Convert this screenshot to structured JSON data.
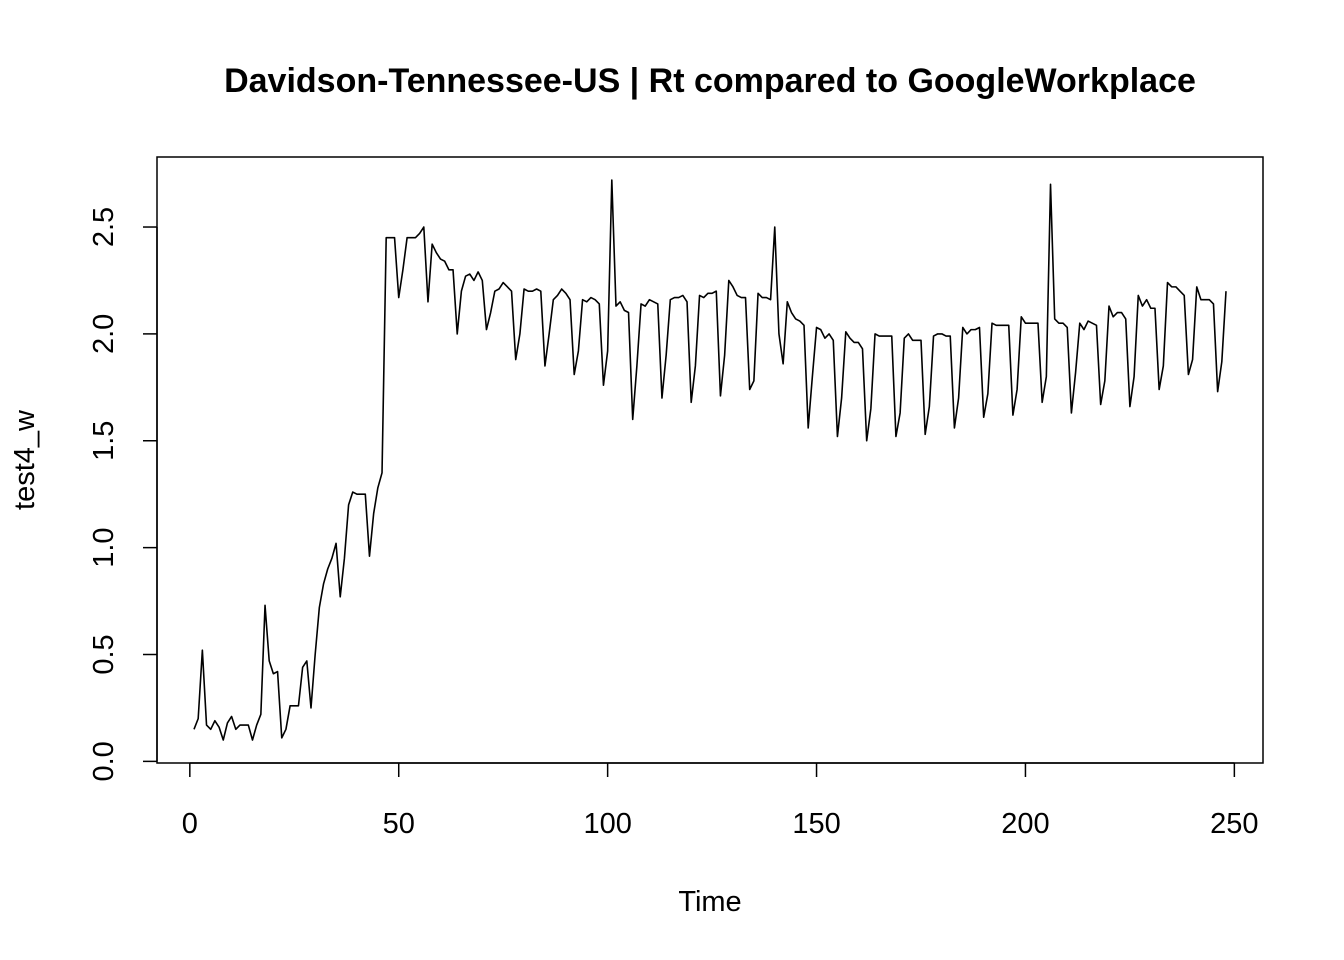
{
  "chart_data": {
    "type": "line",
    "title": "Davidson-Tennessee-US | Rt compared to GoogleWorkplace",
    "xlabel": "Time",
    "ylabel": "test4_w",
    "xlim": [
      1,
      248
    ],
    "ylim": [
      0.1,
      2.72
    ],
    "xticks": [
      0,
      50,
      100,
      150,
      200,
      250
    ],
    "xtick_labels": [
      "0",
      "50",
      "100",
      "150",
      "200",
      "250"
    ],
    "yticks": [
      0.0,
      0.5,
      1.0,
      1.5,
      2.0,
      2.5
    ],
    "ytick_labels": [
      "0.0",
      "0.5",
      "1.0",
      "1.5",
      "2.0",
      "2.5"
    ],
    "grid": false,
    "legend": "none",
    "line_color": "#000000",
    "x": [
      1,
      2,
      3,
      4,
      5,
      6,
      7,
      8,
      9,
      10,
      11,
      12,
      13,
      14,
      15,
      16,
      17,
      18,
      19,
      20,
      21,
      22,
      23,
      24,
      25,
      26,
      27,
      28,
      29,
      30,
      31,
      32,
      33,
      34,
      35,
      36,
      37,
      38,
      39,
      40,
      41,
      42,
      43,
      44,
      45,
      46,
      47,
      48,
      49,
      50,
      51,
      52,
      53,
      54,
      55,
      56,
      57,
      58,
      59,
      60,
      61,
      62,
      63,
      64,
      65,
      66,
      67,
      68,
      69,
      70,
      71,
      72,
      73,
      74,
      75,
      76,
      77,
      78,
      79,
      80,
      81,
      82,
      83,
      84,
      85,
      86,
      87,
      88,
      89,
      90,
      91,
      92,
      93,
      94,
      95,
      96,
      97,
      98,
      99,
      100,
      101,
      102,
      103,
      104,
      105,
      106,
      107,
      108,
      109,
      110,
      111,
      112,
      113,
      114,
      115,
      116,
      117,
      118,
      119,
      120,
      121,
      122,
      123,
      124,
      125,
      126,
      127,
      128,
      129,
      130,
      131,
      132,
      133,
      134,
      135,
      136,
      137,
      138,
      139,
      140,
      141,
      142,
      143,
      144,
      145,
      146,
      147,
      148,
      149,
      150,
      151,
      152,
      153,
      154,
      155,
      156,
      157,
      158,
      159,
      160,
      161,
      162,
      163,
      164,
      165,
      166,
      167,
      168,
      169,
      170,
      171,
      172,
      173,
      174,
      175,
      176,
      177,
      178,
      179,
      180,
      181,
      182,
      183,
      184,
      185,
      186,
      187,
      188,
      189,
      190,
      191,
      192,
      193,
      194,
      195,
      196,
      197,
      198,
      199,
      200,
      201,
      202,
      203,
      204,
      205,
      206,
      207,
      208,
      209,
      210,
      211,
      212,
      213,
      214,
      215,
      216,
      217,
      218,
      219,
      220,
      221,
      222,
      223,
      224,
      225,
      226,
      227,
      228,
      229,
      230,
      231,
      232,
      233,
      234,
      235,
      236,
      237,
      238,
      239,
      240,
      241,
      242,
      243,
      244,
      245,
      246,
      247,
      248
    ],
    "values": [
      0.15,
      0.2,
      0.52,
      0.17,
      0.15,
      0.19,
      0.16,
      0.1,
      0.18,
      0.21,
      0.15,
      0.17,
      0.17,
      0.17,
      0.1,
      0.17,
      0.22,
      0.73,
      0.47,
      0.41,
      0.42,
      0.11,
      0.15,
      0.26,
      0.26,
      0.26,
      0.44,
      0.47,
      0.25,
      0.5,
      0.72,
      0.83,
      0.9,
      0.95,
      1.02,
      0.77,
      0.95,
      1.2,
      1.26,
      1.25,
      1.25,
      1.25,
      0.96,
      1.16,
      1.28,
      1.35,
      2.45,
      2.45,
      2.45,
      2.17,
      2.3,
      2.45,
      2.45,
      2.45,
      2.47,
      2.5,
      2.15,
      2.42,
      2.38,
      2.35,
      2.34,
      2.3,
      2.3,
      2.0,
      2.2,
      2.27,
      2.28,
      2.25,
      2.29,
      2.25,
      2.02,
      2.1,
      2.2,
      2.21,
      2.24,
      2.22,
      2.2,
      1.88,
      2.0,
      2.21,
      2.2,
      2.2,
      2.21,
      2.2,
      1.85,
      2.0,
      2.16,
      2.18,
      2.21,
      2.19,
      2.16,
      1.81,
      1.92,
      2.16,
      2.15,
      2.17,
      2.16,
      2.14,
      1.76,
      1.92,
      2.72,
      2.13,
      2.15,
      2.11,
      2.1,
      1.6,
      1.85,
      2.14,
      2.13,
      2.16,
      2.15,
      2.14,
      1.7,
      1.9,
      2.16,
      2.17,
      2.17,
      2.18,
      2.15,
      1.68,
      1.85,
      2.18,
      2.17,
      2.19,
      2.19,
      2.2,
      1.71,
      1.9,
      2.25,
      2.22,
      2.18,
      2.17,
      2.17,
      1.74,
      1.78,
      2.19,
      2.17,
      2.17,
      2.16,
      2.5,
      2.0,
      1.86,
      2.15,
      2.1,
      2.07,
      2.06,
      2.04,
      1.56,
      1.8,
      2.03,
      2.02,
      1.98,
      2.0,
      1.97,
      1.52,
      1.7,
      2.01,
      1.98,
      1.96,
      1.96,
      1.93,
      1.5,
      1.65,
      2.0,
      1.99,
      1.99,
      1.99,
      1.99,
      1.52,
      1.63,
      1.98,
      2.0,
      1.97,
      1.97,
      1.97,
      1.53,
      1.66,
      1.99,
      2.0,
      2.0,
      1.99,
      1.99,
      1.56,
      1.7,
      2.03,
      2.0,
      2.02,
      2.02,
      2.03,
      1.61,
      1.72,
      2.05,
      2.04,
      2.04,
      2.04,
      2.04,
      1.62,
      1.74,
      2.08,
      2.05,
      2.05,
      2.05,
      2.05,
      1.68,
      1.8,
      2.7,
      2.07,
      2.05,
      2.05,
      2.03,
      1.63,
      1.82,
      2.05,
      2.02,
      2.06,
      2.05,
      2.04,
      1.67,
      1.78,
      2.13,
      2.08,
      2.1,
      2.1,
      2.07,
      1.66,
      1.8,
      2.18,
      2.13,
      2.16,
      2.12,
      2.12,
      1.74,
      1.85,
      2.24,
      2.22,
      2.22,
      2.2,
      2.18,
      1.81,
      1.88,
      2.22,
      2.16,
      2.16,
      2.16,
      2.14,
      1.73,
      1.87,
      2.2
    ]
  }
}
